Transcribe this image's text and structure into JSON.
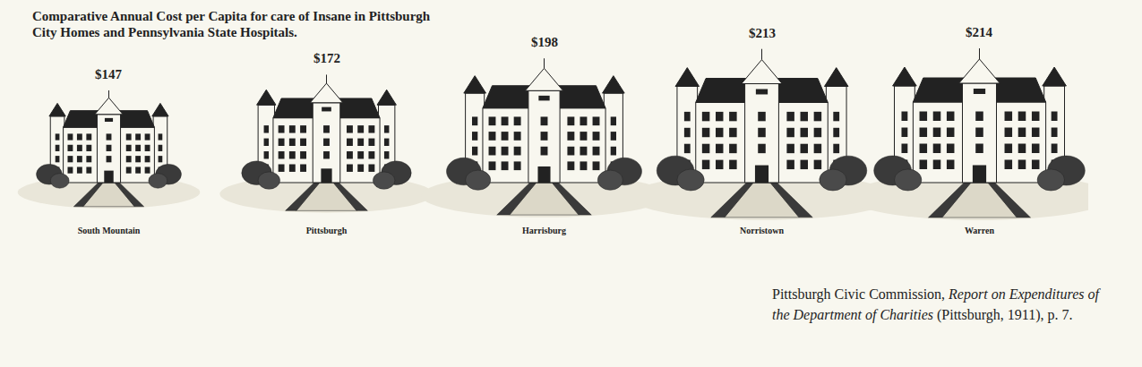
{
  "chart_data": {
    "type": "pictograph",
    "title": "Comparative Annual Cost per Capita for care of Insane in Pittsburgh City Homes and Pennsylvania State Hospitals.",
    "categories": [
      "South Mountain",
      "Pittsburgh",
      "Harrisburg",
      "Norristown",
      "Warren"
    ],
    "values": [
      147,
      172,
      198,
      213,
      214
    ],
    "value_labels": [
      "$147",
      "$172",
      "$198",
      "$213",
      "$214"
    ],
    "data_labels": true,
    "tick_labels": "x",
    "color": "#222222",
    "source": {
      "author": "Pittsburgh Civic Commission,",
      "title": "Report on Expenditures of the Department of Charities",
      "details": "(Pittsburgh, 1911), p. 7."
    }
  }
}
